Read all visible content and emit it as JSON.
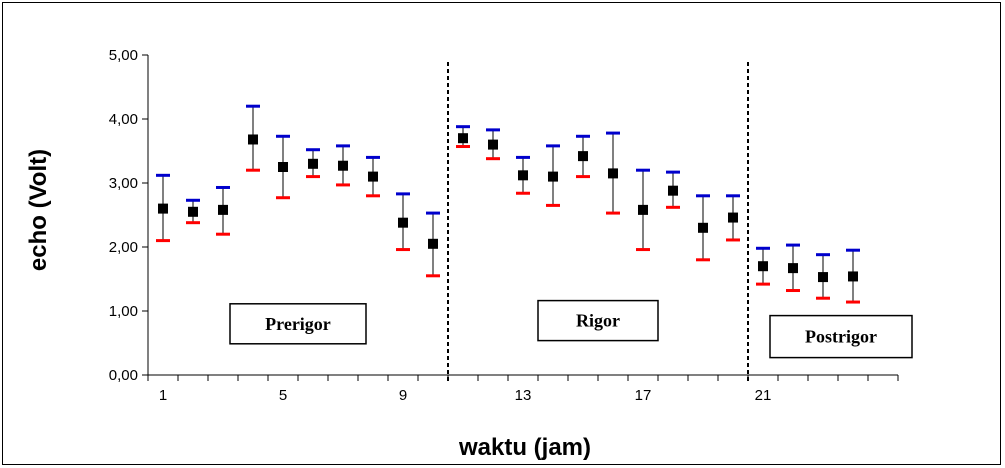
{
  "chart_data": {
    "type": "scatter",
    "xlabel": "waktu (jam)",
    "ylabel": "echo (Volt)",
    "ylim": [
      0,
      5
    ],
    "yticks": [
      "0,00",
      "1,00",
      "2,00",
      "3,00",
      "4,00",
      "5,00"
    ],
    "xlim": [
      0.5,
      25.5
    ],
    "xticks": [
      1,
      5,
      9,
      13,
      17,
      21
    ],
    "grid": false,
    "marker_color": "#000000",
    "upper_error_color": "#0000cc",
    "lower_error_color": "#ff0000",
    "phase_dividers_x": [
      10.5,
      20.5
    ],
    "phases": [
      {
        "label": "Prerigor",
        "x_center": 5.5,
        "y_center": 0.8
      },
      {
        "label": "Rigor",
        "x_center": 15.5,
        "y_center": 0.85
      },
      {
        "label": "Postrigor",
        "x_center": 23.6,
        "y_center": 0.6
      }
    ],
    "series": [
      {
        "x": [
          1,
          2,
          3,
          4,
          5,
          6,
          7,
          8,
          9,
          10,
          11,
          12,
          13,
          14,
          15,
          16,
          17,
          18,
          19,
          20,
          21,
          22,
          23,
          24
        ],
        "y": [
          2.6,
          2.55,
          2.58,
          3.68,
          3.25,
          3.3,
          3.27,
          3.1,
          2.38,
          2.05,
          3.7,
          3.6,
          3.12,
          3.1,
          3.42,
          3.15,
          2.58,
          2.88,
          2.3,
          2.46,
          1.7,
          1.67,
          1.53,
          1.54
        ],
        "upper": [
          3.12,
          2.73,
          2.93,
          4.2,
          3.73,
          3.52,
          3.58,
          3.4,
          2.83,
          2.53,
          3.88,
          3.83,
          3.4,
          3.58,
          3.73,
          3.78,
          3.2,
          3.17,
          2.8,
          2.8,
          1.98,
          2.03,
          1.88,
          1.95
        ],
        "lower": [
          2.1,
          2.38,
          2.2,
          3.2,
          2.77,
          3.1,
          2.97,
          2.8,
          1.96,
          1.55,
          3.57,
          3.38,
          2.84,
          2.65,
          3.1,
          2.53,
          1.96,
          2.62,
          1.8,
          2.11,
          1.42,
          1.32,
          1.2,
          1.14
        ]
      }
    ]
  }
}
